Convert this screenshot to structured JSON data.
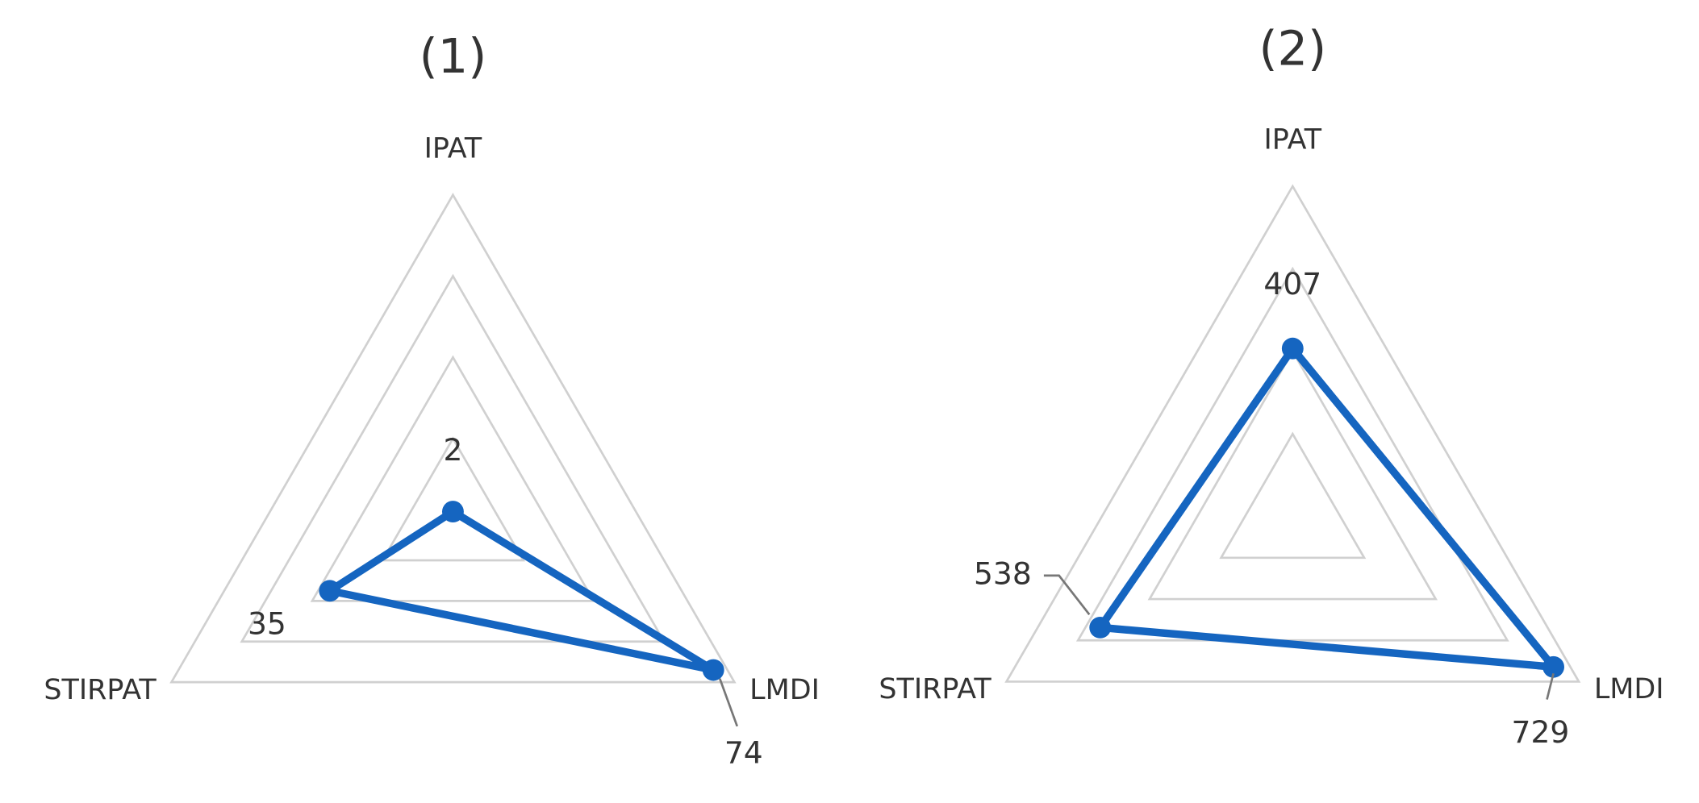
{
  "chart_data": [
    {
      "type": "radar",
      "title": "(1)",
      "categories": [
        "IPAT",
        "LMDI",
        "STIRPAT"
      ],
      "values": [
        2,
        74,
        35
      ],
      "color": "#1565c0",
      "rlim": [
        0,
        80
      ],
      "rticks": [
        20,
        40,
        60,
        80
      ]
    },
    {
      "type": "radar",
      "title": "(2)",
      "categories": [
        "IPAT",
        "LMDI",
        "STIRPAT"
      ],
      "values": [
        407,
        729,
        538
      ],
      "color": "#1565c0",
      "rlim": [
        0,
        800
      ],
      "rticks": [
        200,
        400,
        600,
        800
      ]
    }
  ]
}
